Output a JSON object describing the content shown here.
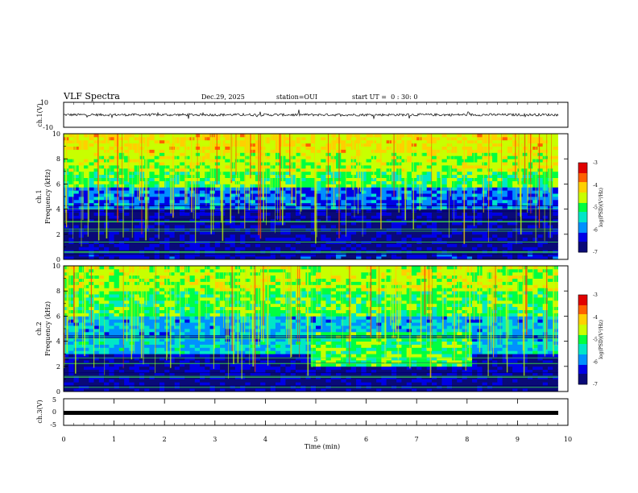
{
  "header": {
    "title": "VLF Spectra",
    "date": "Dec.29, 2025",
    "station": "station=OUI",
    "start_ut": "start UT =  0 : 30: 0"
  },
  "chart_data": [
    {
      "type": "line",
      "name": "ch1-waveform",
      "ylabel": "ch.1(V)",
      "ylim": [
        -10,
        10
      ],
      "yticks": [
        "10",
        "-10"
      ],
      "xlim": [
        0,
        10
      ],
      "baseline_value": 0,
      "approx_noise_amplitude": 2
    },
    {
      "type": "heatmap",
      "name": "ch1-spectrogram",
      "ylabel_top": "ch.1",
      "ylabel": "Frequency (kHz)",
      "ylim": [
        0,
        10
      ],
      "yticks": [
        "0",
        "2",
        "4",
        "6",
        "8",
        "10"
      ],
      "xlim": [
        0,
        9.8
      ],
      "colorbar": {
        "label": "log(PSD)(V²/Hz)",
        "ticks": [
          "-3",
          "-4",
          "-5",
          "-6",
          "-7"
        ],
        "range": [
          -7,
          -3
        ]
      },
      "bands_khz": [
        {
          "from": 0,
          "to": 0.6,
          "level": -6.5
        },
        {
          "from": 0.6,
          "to": 4.0,
          "level": -6.7
        },
        {
          "from": 4.0,
          "to": 5.8,
          "level": -6.0
        },
        {
          "from": 5.8,
          "to": 7.0,
          "level": -5.0
        },
        {
          "from": 7.0,
          "to": 8.5,
          "level": -4.6
        },
        {
          "from": 8.5,
          "to": 10,
          "level": -4.3
        }
      ]
    },
    {
      "type": "heatmap",
      "name": "ch2-spectrogram",
      "ylabel_top": "ch.2",
      "ylabel": "Frequency (kHz)",
      "ylim": [
        0,
        10
      ],
      "yticks": [
        "0",
        "2",
        "4",
        "6",
        "8",
        "10"
      ],
      "xlim": [
        0,
        9.8
      ],
      "colorbar": {
        "label": "log(PSD)(V²/Hz)",
        "ticks": [
          "-3",
          "-4",
          "-5",
          "-6",
          "-7"
        ],
        "range": [
          -7,
          -3
        ]
      },
      "bands_khz": [
        {
          "from": 0,
          "to": 1.0,
          "level": -6.8
        },
        {
          "from": 1.0,
          "to": 3.0,
          "level": -6.6
        },
        {
          "from": 3.0,
          "to": 4.0,
          "level": -5.6
        },
        {
          "from": 4.0,
          "to": 6.0,
          "level": -5.7
        },
        {
          "from": 6.0,
          "to": 8.0,
          "level": -5.0
        },
        {
          "from": 8.0,
          "to": 10,
          "level": -4.6
        }
      ],
      "enhanced_band": {
        "t_from": 4.9,
        "t_to": 8.1,
        "f_from": 2.0,
        "f_to": 4.8,
        "level": -5.0
      }
    },
    {
      "type": "line",
      "name": "ch3-waveform",
      "ylabel": "ch.3(V)",
      "ylim": [
        -5,
        5
      ],
      "yticks": [
        "5",
        "0",
        "-5"
      ],
      "xlim": [
        0,
        10
      ],
      "xlabel": "Time (min)",
      "xticks": [
        "0",
        "1",
        "2",
        "3",
        "4",
        "5",
        "6",
        "7",
        "8",
        "9",
        "10"
      ],
      "constant_value": -1.5
    }
  ],
  "colors": {
    "axis": "#000000",
    "colormap": [
      "#0a0a78",
      "#0000e6",
      "#0090ff",
      "#00e6c8",
      "#00ff40",
      "#c8ff00",
      "#ffd000",
      "#ff6000",
      "#e00000"
    ]
  }
}
